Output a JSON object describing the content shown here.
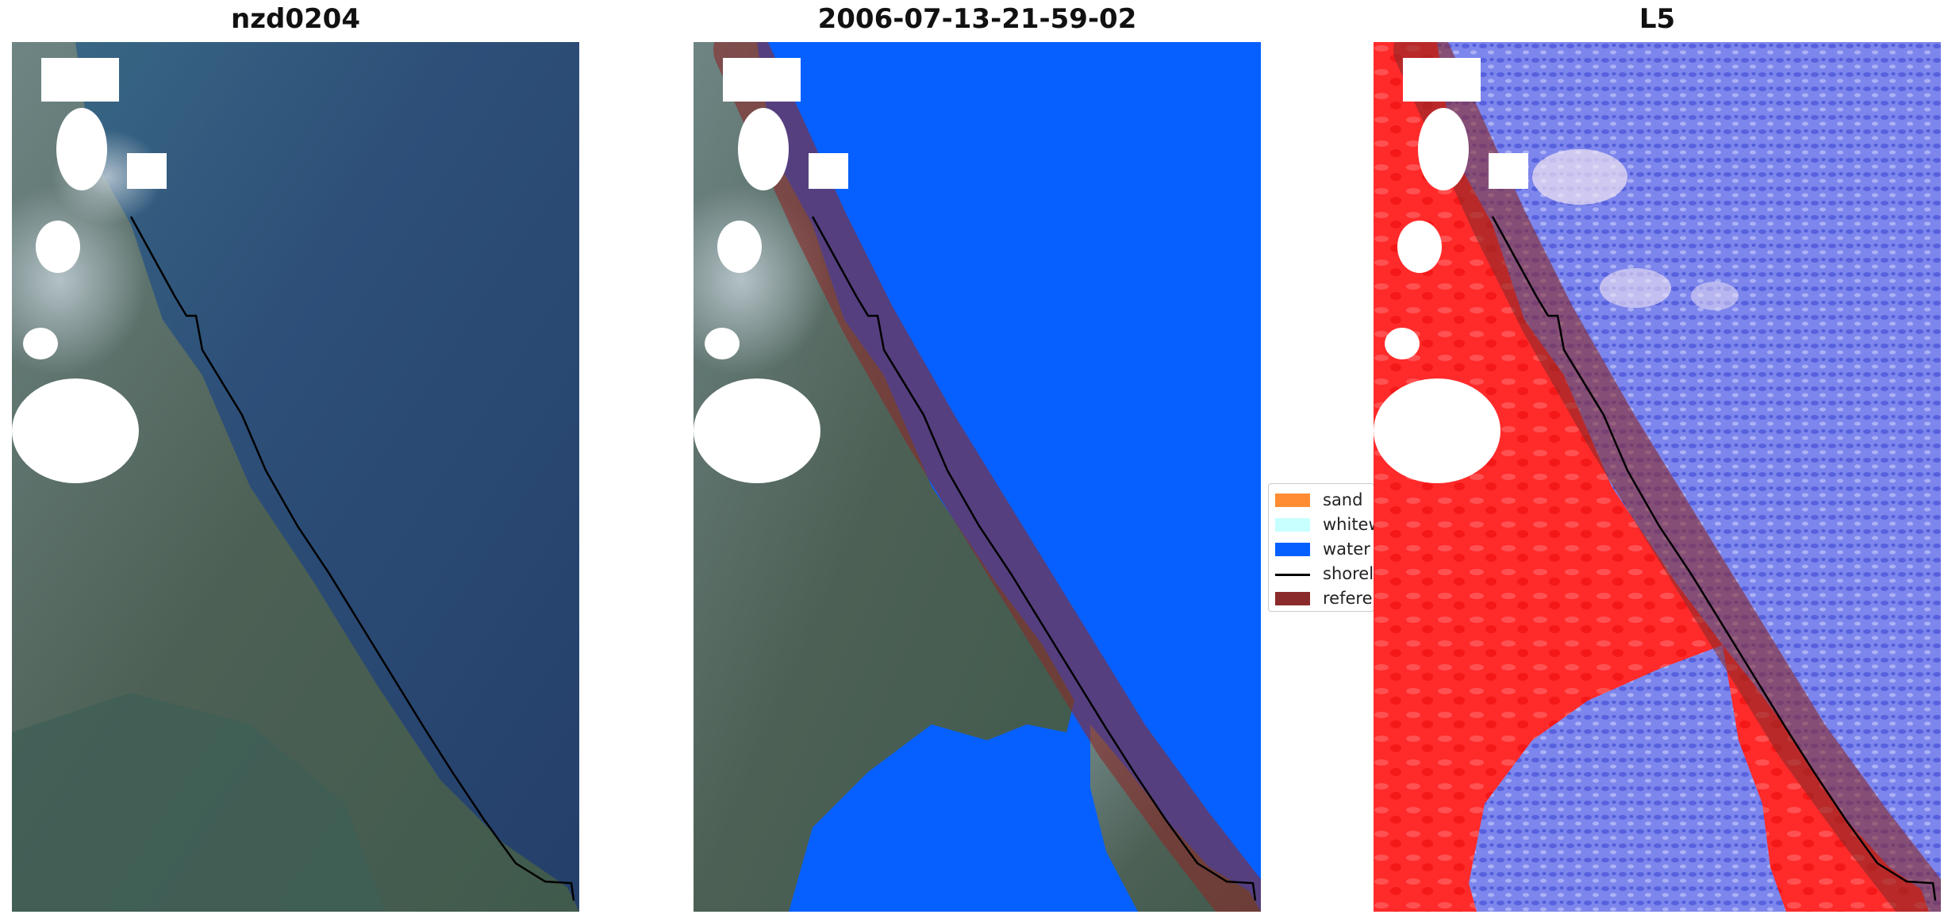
{
  "panels": [
    {
      "title": "nzd0204"
    },
    {
      "title": "2006-07-13-21-59-02"
    },
    {
      "title": "L5"
    }
  ],
  "legend": {
    "items": [
      {
        "label": "sand",
        "color": "#ff8c32"
      },
      {
        "label": "whitewater",
        "color": "#c8ffff"
      },
      {
        "label": "water",
        "color": "#0560ff"
      },
      {
        "label": "shoreline",
        "color": "#000000"
      },
      {
        "label": "reference shoreline buffer",
        "color": "#8b2a2a"
      }
    ]
  },
  "colors": {
    "sea_rgb": "#2b4a72",
    "land_rgb": "#4b6258",
    "water_class": "#0560ff",
    "buffer": "#8b2a2a",
    "index_positive": "#ff2020",
    "index_negative": "#5e68e6",
    "cloud_mask": "#ffffff"
  }
}
